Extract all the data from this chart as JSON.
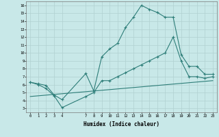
{
  "xlabel": "Humidex (Indice chaleur)",
  "ylabel": "",
  "background_color": "#c8e8e8",
  "line_color": "#2d7d78",
  "xlim": [
    -0.5,
    23.5
  ],
  "ylim": [
    2.5,
    16.5
  ],
  "xticks": [
    0,
    1,
    2,
    3,
    4,
    7,
    8,
    9,
    10,
    11,
    12,
    13,
    14,
    15,
    16,
    17,
    18,
    19,
    20,
    21,
    22,
    23
  ],
  "yticks": [
    3,
    4,
    5,
    6,
    7,
    8,
    9,
    10,
    11,
    12,
    13,
    14,
    15,
    16
  ],
  "line1_x": [
    0,
    1,
    2,
    3,
    4,
    7,
    8,
    9,
    10,
    11,
    12,
    13,
    14,
    15,
    16,
    17,
    18,
    19,
    20,
    21,
    22,
    23
  ],
  "line1_y": [
    6.3,
    6.1,
    5.9,
    4.7,
    4.1,
    7.4,
    5.2,
    9.5,
    10.5,
    11.2,
    13.2,
    14.5,
    16.0,
    15.5,
    15.1,
    14.5,
    14.5,
    9.8,
    8.3,
    8.3,
    7.3,
    7.3
  ],
  "line2_x": [
    0,
    1,
    2,
    3,
    4,
    7,
    8,
    9,
    10,
    11,
    12,
    13,
    14,
    15,
    16,
    17,
    18,
    19,
    20,
    21,
    22,
    23
  ],
  "line2_y": [
    6.3,
    6.0,
    5.5,
    4.6,
    3.1,
    4.5,
    5.0,
    6.5,
    6.5,
    7.0,
    7.5,
    8.0,
    8.5,
    9.0,
    9.5,
    10.0,
    12.0,
    9.0,
    7.0,
    7.0,
    6.8,
    7.0
  ],
  "line3_x": [
    0,
    23
  ],
  "line3_y": [
    4.5,
    6.5
  ],
  "gridcolor": "#b0d0d0",
  "font": "monospace"
}
